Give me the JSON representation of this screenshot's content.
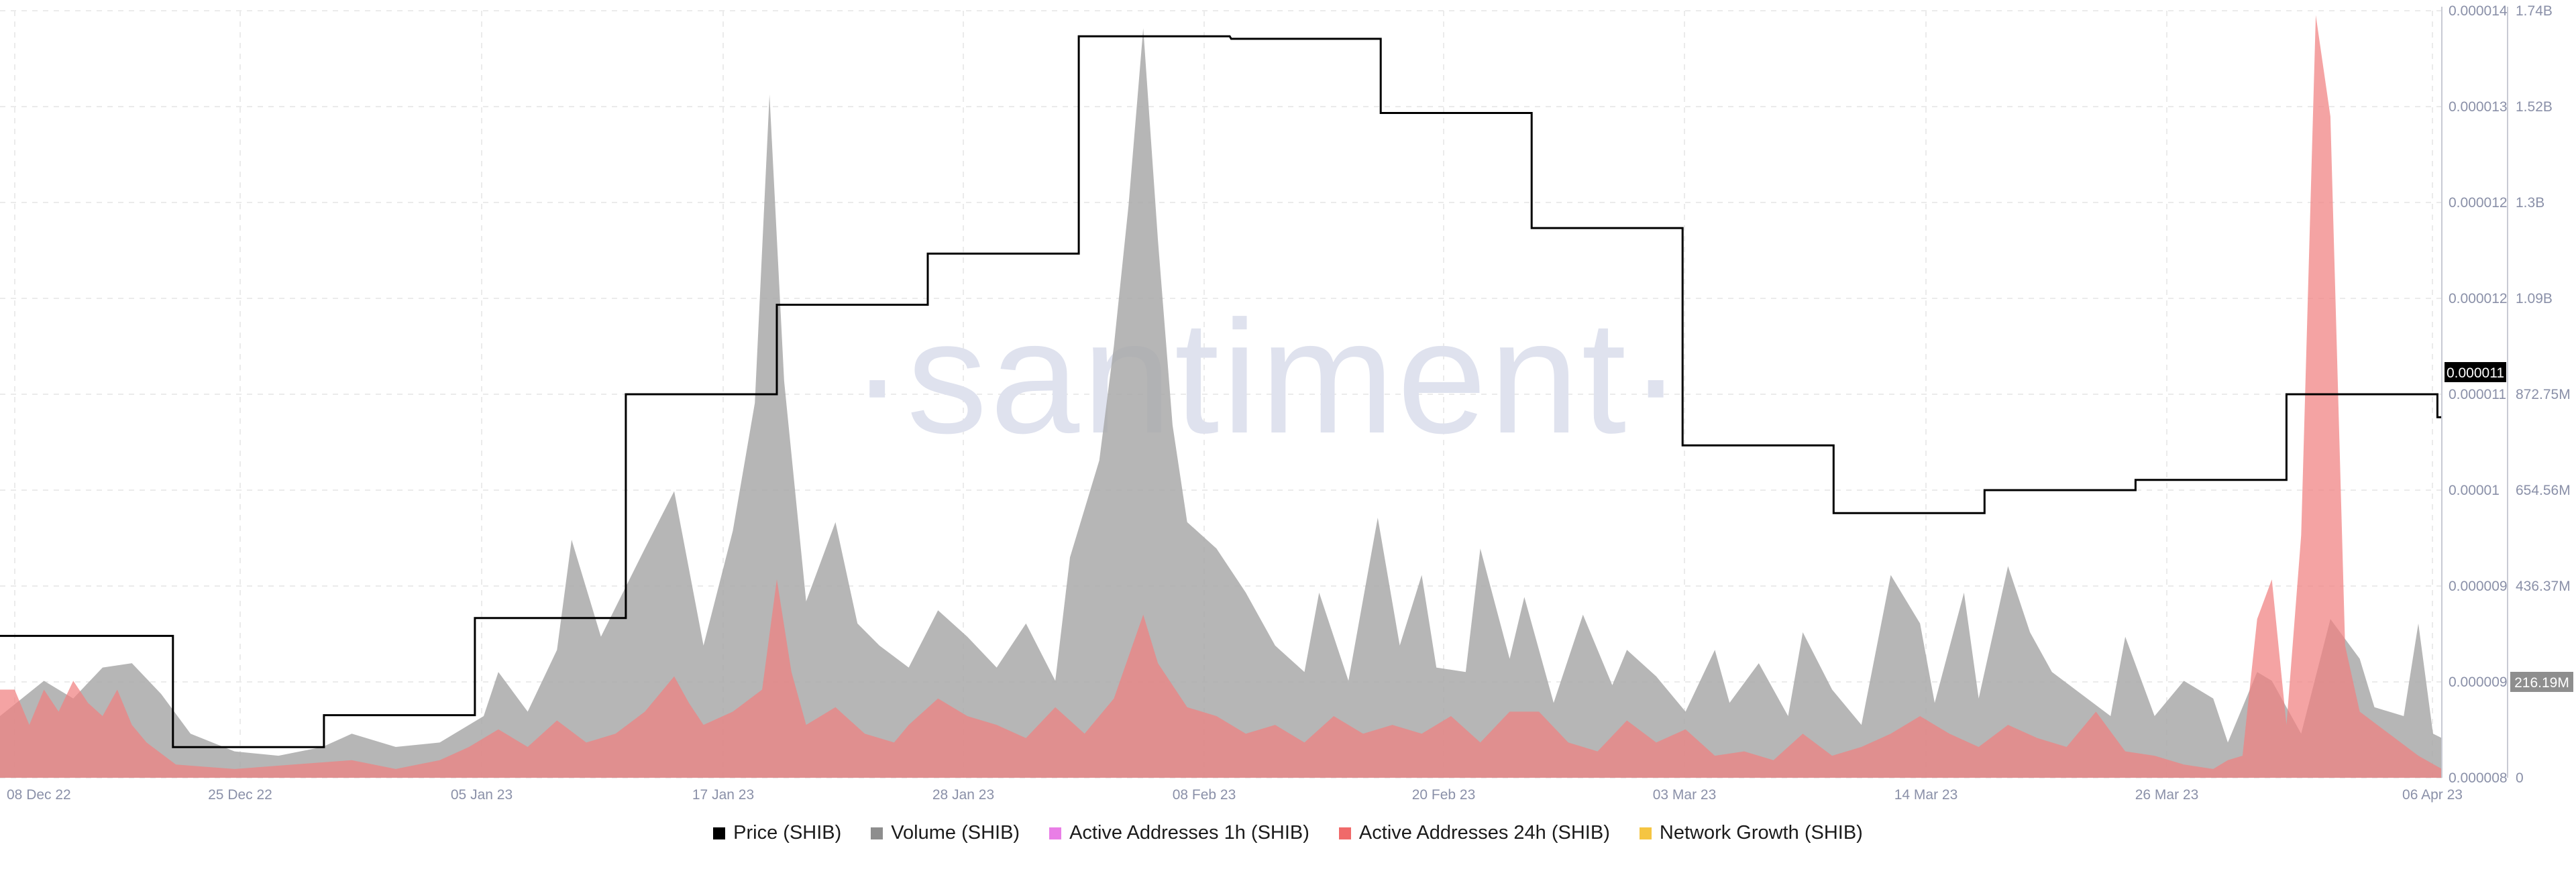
{
  "watermark": "·santiment·",
  "colors": {
    "price": "#000000",
    "volume": "#a9a9a9",
    "active_1h": "#e97ee6",
    "active_24h": "#f08080",
    "network_growth": "#f5c542",
    "grid": "#ebebeb",
    "axis_text": "#8a90a8"
  },
  "legend": [
    {
      "label": "Price (SHIB)",
      "color": "#000000"
    },
    {
      "label": "Volume (SHIB)",
      "color": "#8e8e8e"
    },
    {
      "label": "Active Addresses 1h (SHIB)",
      "color": "#e97ee6"
    },
    {
      "label": "Active Addresses 24h (SHIB)",
      "color": "#f06a6a"
    },
    {
      "label": "Network Growth (SHIB)",
      "color": "#f5c542"
    }
  ],
  "chart_data": {
    "type": "area",
    "x_ticks": [
      "08 Dec 22",
      "25 Dec 22",
      "05 Jan 23",
      "17 Jan 23",
      "28 Jan 23",
      "08 Feb 23",
      "20 Feb 23",
      "03 Mar 23",
      "14 Mar 23",
      "26 Mar 23",
      "06 Apr 23"
    ],
    "x_range": [
      "08 Dec 22",
      "06 Apr 23"
    ],
    "price_axis": {
      "ticks": [
        "0.000014",
        "0.000013",
        "0.000012",
        "0.000012",
        "0.000011",
        "0.00001",
        "0.000009",
        "0.000009",
        "0.000008"
      ],
      "current_label": "0.000011",
      "ylim": [
        8.1e-06,
        1.41e-05
      ]
    },
    "volume_axis": {
      "ticks": [
        "1.74B",
        "1.52B",
        "1.3B",
        "1.09B",
        "872.75M",
        "654.56M",
        "436.37M",
        "216.19M",
        "0"
      ],
      "current_label": "216.19M",
      "ylim": [
        0,
        1.74
      ]
    },
    "series": [
      {
        "name": "Price (SHIB)",
        "kind": "step",
        "values": [
          [
            0,
            9.21e-06
          ],
          [
            11.8,
            9.21e-06
          ],
          [
            11.8,
            8.34e-06
          ],
          [
            22.1,
            8.34e-06
          ],
          [
            22.1,
            8.59e-06
          ],
          [
            32.4,
            8.59e-06
          ],
          [
            32.4,
            9.35e-06
          ],
          [
            42.7,
            9.35e-06
          ],
          [
            42.7,
            1.11e-05
          ],
          [
            53.0,
            1.11e-05
          ],
          [
            53.0,
            1.18e-05
          ],
          [
            63.3,
            1.18e-05
          ],
          [
            63.3,
            1.22e-05
          ],
          [
            73.6,
            1.22e-05
          ],
          [
            73.6,
            1.39e-05
          ],
          [
            83.9,
            1.39e-05
          ],
          [
            84.0,
            1.388e-05
          ],
          [
            94.2,
            1.388e-05
          ],
          [
            94.2,
            1.33e-05
          ],
          [
            104.5,
            1.33e-05
          ],
          [
            104.5,
            1.24e-05
          ],
          [
            114.8,
            1.24e-05
          ],
          [
            114.8,
            1.07e-05
          ],
          [
            125.1,
            1.07e-05
          ],
          [
            125.1,
            1.017e-05
          ],
          [
            135.4,
            1.017e-05
          ],
          [
            135.4,
            1.035e-05
          ],
          [
            145.7,
            1.035e-05
          ],
          [
            145.7,
            1.043e-05
          ],
          [
            156.0,
            1.043e-05
          ],
          [
            156.0,
            1.11e-05
          ],
          [
            166.3,
            1.11e-05
          ],
          [
            166.3,
            1.092e-05
          ],
          [
            166.6,
            1.092e-05
          ]
        ]
      },
      {
        "name": "Volume (SHIB)",
        "kind": "area",
        "values": [
          [
            0,
            0.14
          ],
          [
            3,
            0.22
          ],
          [
            5,
            0.18
          ],
          [
            7,
            0.25
          ],
          [
            9,
            0.26
          ],
          [
            11,
            0.19
          ],
          [
            13,
            0.1
          ],
          [
            16,
            0.06
          ],
          [
            19,
            0.05
          ],
          [
            22,
            0.07
          ],
          [
            24,
            0.1
          ],
          [
            27,
            0.07
          ],
          [
            30,
            0.08
          ],
          [
            33,
            0.14
          ],
          [
            34,
            0.24
          ],
          [
            36,
            0.15
          ],
          [
            38,
            0.29
          ],
          [
            39,
            0.54
          ],
          [
            41,
            0.32
          ],
          [
            44,
            0.52
          ],
          [
            46,
            0.65
          ],
          [
            48,
            0.3
          ],
          [
            50,
            0.56
          ],
          [
            51.5,
            0.85
          ],
          [
            52.5,
            1.55
          ],
          [
            53.5,
            0.9
          ],
          [
            55,
            0.4
          ],
          [
            57,
            0.58
          ],
          [
            58.5,
            0.35
          ],
          [
            60,
            0.3
          ],
          [
            62,
            0.25
          ],
          [
            64,
            0.38
          ],
          [
            66,
            0.32
          ],
          [
            68,
            0.25
          ],
          [
            70,
            0.35
          ],
          [
            72,
            0.22
          ],
          [
            73,
            0.5
          ],
          [
            75,
            0.72
          ],
          [
            76,
            0.98
          ],
          [
            77,
            1.3
          ],
          [
            78,
            1.7
          ],
          [
            79,
            1.22
          ],
          [
            80,
            0.8
          ],
          [
            81,
            0.58
          ],
          [
            83,
            0.52
          ],
          [
            85,
            0.42
          ],
          [
            87,
            0.3
          ],
          [
            89,
            0.24
          ],
          [
            90,
            0.42
          ],
          [
            92,
            0.22
          ],
          [
            94,
            0.59
          ],
          [
            95.5,
            0.3
          ],
          [
            97,
            0.46
          ],
          [
            98,
            0.25
          ],
          [
            100,
            0.24
          ],
          [
            101,
            0.52
          ],
          [
            103,
            0.27
          ],
          [
            104,
            0.41
          ],
          [
            106,
            0.17
          ],
          [
            108,
            0.37
          ],
          [
            110,
            0.21
          ],
          [
            111,
            0.29
          ],
          [
            113,
            0.23
          ],
          [
            115,
            0.15
          ],
          [
            117,
            0.29
          ],
          [
            118,
            0.17
          ],
          [
            120,
            0.26
          ],
          [
            122,
            0.14
          ],
          [
            123,
            0.33
          ],
          [
            125,
            0.2
          ],
          [
            127,
            0.12
          ],
          [
            129,
            0.46
          ],
          [
            131,
            0.35
          ],
          [
            132,
            0.17
          ],
          [
            134,
            0.42
          ],
          [
            135,
            0.18
          ],
          [
            137,
            0.48
          ],
          [
            138.5,
            0.33
          ],
          [
            140,
            0.24
          ],
          [
            142,
            0.19
          ],
          [
            144,
            0.14
          ],
          [
            145,
            0.32
          ],
          [
            147,
            0.14
          ],
          [
            149,
            0.22
          ],
          [
            151,
            0.18
          ],
          [
            152,
            0.08
          ],
          [
            154,
            0.24
          ],
          [
            155,
            0.22
          ],
          [
            157,
            0.1
          ],
          [
            159,
            0.36
          ],
          [
            161,
            0.27
          ],
          [
            162,
            0.16
          ],
          [
            164,
            0.14
          ],
          [
            165,
            0.35
          ],
          [
            166,
            0.1
          ],
          [
            166.6,
            0.09
          ]
        ]
      },
      {
        "name": "Active Addresses 24h (SHIB)",
        "kind": "area",
        "values": [
          [
            0,
            0.2
          ],
          [
            1,
            0.2
          ],
          [
            2,
            0.12
          ],
          [
            3,
            0.2
          ],
          [
            4,
            0.15
          ],
          [
            5,
            0.22
          ],
          [
            6,
            0.17
          ],
          [
            7,
            0.14
          ],
          [
            8,
            0.2
          ],
          [
            9,
            0.12
          ],
          [
            10,
            0.08
          ],
          [
            12,
            0.03
          ],
          [
            16,
            0.02
          ],
          [
            20,
            0.03
          ],
          [
            24,
            0.04
          ],
          [
            27,
            0.02
          ],
          [
            30,
            0.04
          ],
          [
            32,
            0.07
          ],
          [
            34,
            0.11
          ],
          [
            36,
            0.07
          ],
          [
            38,
            0.13
          ],
          [
            40,
            0.08
          ],
          [
            42,
            0.1
          ],
          [
            44,
            0.15
          ],
          [
            46,
            0.23
          ],
          [
            47,
            0.17
          ],
          [
            48,
            0.12
          ],
          [
            50,
            0.15
          ],
          [
            52,
            0.2
          ],
          [
            53,
            0.45
          ],
          [
            54,
            0.24
          ],
          [
            55,
            0.12
          ],
          [
            57,
            0.16
          ],
          [
            59,
            0.1
          ],
          [
            61,
            0.08
          ],
          [
            62,
            0.12
          ],
          [
            64,
            0.18
          ],
          [
            66,
            0.14
          ],
          [
            68,
            0.12
          ],
          [
            70,
            0.09
          ],
          [
            72,
            0.16
          ],
          [
            74,
            0.1
          ],
          [
            76,
            0.18
          ],
          [
            78,
            0.37
          ],
          [
            79,
            0.26
          ],
          [
            81,
            0.16
          ],
          [
            83,
            0.14
          ],
          [
            85,
            0.1
          ],
          [
            87,
            0.12
          ],
          [
            89,
            0.08
          ],
          [
            91,
            0.14
          ],
          [
            93,
            0.1
          ],
          [
            95,
            0.12
          ],
          [
            97,
            0.1
          ],
          [
            99,
            0.14
          ],
          [
            101,
            0.08
          ],
          [
            103,
            0.15
          ],
          [
            105,
            0.15
          ],
          [
            107,
            0.08
          ],
          [
            109,
            0.06
          ],
          [
            111,
            0.13
          ],
          [
            113,
            0.08
          ],
          [
            115,
            0.11
          ],
          [
            117,
            0.05
          ],
          [
            119,
            0.06
          ],
          [
            121,
            0.04
          ],
          [
            123,
            0.1
          ],
          [
            125,
            0.05
          ],
          [
            127,
            0.07
          ],
          [
            129,
            0.1
          ],
          [
            131,
            0.14
          ],
          [
            133,
            0.1
          ],
          [
            135,
            0.07
          ],
          [
            137,
            0.12
          ],
          [
            139,
            0.09
          ],
          [
            141,
            0.07
          ],
          [
            143,
            0.15
          ],
          [
            145,
            0.06
          ],
          [
            147,
            0.05
          ],
          [
            149,
            0.03
          ],
          [
            151,
            0.02
          ],
          [
            152,
            0.04
          ],
          [
            153,
            0.05
          ],
          [
            154,
            0.36
          ],
          [
            155,
            0.45
          ],
          [
            156,
            0.12
          ],
          [
            157,
            0.55
          ],
          [
            158,
            1.73
          ],
          [
            159,
            1.5
          ],
          [
            160,
            0.3
          ],
          [
            161,
            0.15
          ],
          [
            163,
            0.1
          ],
          [
            165,
            0.05
          ],
          [
            166.6,
            0.02
          ]
        ]
      }
    ]
  }
}
